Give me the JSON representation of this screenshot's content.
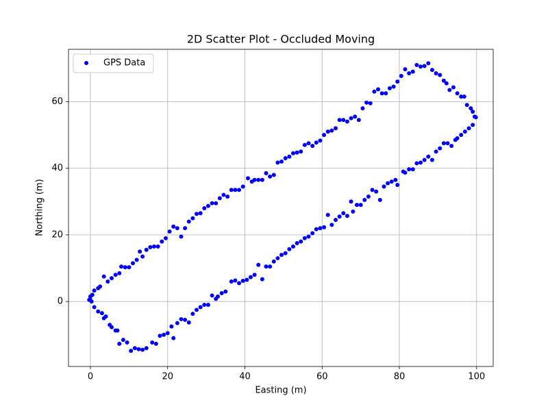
{
  "chart_data": {
    "type": "scatter",
    "title": "2D Scatter Plot - Occluded Moving",
    "x_label": "Easting (m)",
    "y_label": "Northing (m)",
    "xlim": [
      -5.67,
      104.3
    ],
    "ylim": [
      -19.5,
      75.7
    ],
    "xticks": [
      0,
      20,
      40,
      60,
      80,
      100
    ],
    "yticks": [
      0,
      20,
      40,
      60
    ],
    "grid": true,
    "legend": "upper left",
    "series": [
      {
        "name": "GPS Data",
        "color": "blue",
        "x": [
          -0.3,
          0,
          0.5,
          1,
          2,
          2.5,
          3.5,
          4.5,
          5.5,
          6.5,
          7.5,
          8,
          9,
          10,
          11,
          12,
          12.8,
          13.5,
          14.5,
          15.5,
          16.5,
          17.5,
          18.5,
          19.5,
          20.5,
          21.5,
          22.5,
          23.5,
          24.5,
          25.5,
          26.5,
          27.5,
          28.5,
          29.5,
          30.5,
          31.5,
          32.5,
          33.5,
          34.5,
          35.5,
          36.5,
          37.5,
          38.5,
          39.5,
          40.8,
          41.8,
          42.5,
          43.5,
          44.5,
          45.5,
          46.5,
          47.5,
          48.5,
          49.5,
          50.5,
          51.5,
          52.5,
          53.5,
          54.5,
          55.5,
          56.5,
          57.5,
          58.5,
          59.5,
          60.5,
          61.5,
          62.5,
          63.5,
          64.5,
          65.5,
          66.5,
          67.5,
          68.5,
          69.5,
          70.5,
          71.5,
          72.5,
          73.5,
          74.5,
          75.5,
          76.5,
          77.5,
          78.5,
          79.5,
          80.5,
          81.5,
          82.5,
          83.5,
          84.5,
          85.5,
          86.5,
          87.5,
          88.5,
          89.5,
          90.5,
          91.5,
          92.2,
          93,
          94,
          95,
          96,
          96.8,
          97.5,
          98.5,
          99,
          99.5,
          99.8,
          99,
          98,
          97,
          96,
          95,
          94.5,
          93.5,
          92.5,
          91.5,
          90.5,
          89.5,
          88.5,
          87.5,
          86.5,
          85.5,
          84.5,
          83.5,
          82.5,
          81.5,
          81,
          79.5,
          79,
          78,
          77,
          76,
          75,
          74,
          73,
          72,
          71,
          70,
          69,
          68,
          67.5,
          66.5,
          65.5,
          64.5,
          63.5,
          62.5,
          61.5,
          60.5,
          59.5,
          58.5,
          57.5,
          56.5,
          55.5,
          54.5,
          53.5,
          52.5,
          51.5,
          50.5,
          49.5,
          48.5,
          47.5,
          46.5,
          45.5,
          44.5,
          43.5,
          42.5,
          41.5,
          40.5,
          39.5,
          38.5,
          37.5,
          36.5,
          35,
          34,
          33,
          32.5,
          31.5,
          30.5,
          29.5,
          28.5,
          27.5,
          26.5,
          25.5,
          24.5,
          23.5,
          22.5,
          21.5,
          21,
          20,
          19,
          18,
          17,
          16,
          14.5,
          13.5,
          12.5,
          11.5,
          10.5,
          9.5,
          8.5,
          7.5,
          7,
          6.5,
          5.5,
          5,
          4,
          3.5,
          3,
          2,
          1,
          0.3,
          0
        ],
        "values": [
          0.5,
          1.5,
          2,
          3.3,
          4,
          4.5,
          7.5,
          6,
          7,
          8,
          8.5,
          10.5,
          10.3,
          10.3,
          11.5,
          12.5,
          15,
          13.5,
          15.5,
          16.3,
          16.5,
          16.5,
          18,
          19,
          21,
          22.5,
          22,
          19.5,
          22,
          24,
          25,
          26.3,
          26.5,
          28,
          28.7,
          29.5,
          29.5,
          31,
          32,
          31.5,
          33.5,
          33.5,
          33.5,
          34.5,
          37,
          36,
          36.5,
          36.5,
          36.5,
          38.5,
          37.5,
          38,
          41.7,
          42,
          43,
          43.5,
          44.5,
          44.7,
          45,
          47,
          47.5,
          46.7,
          47.7,
          48.3,
          50,
          51,
          51.3,
          52,
          54.5,
          54.5,
          54,
          55,
          55.5,
          54.5,
          58,
          59.7,
          59.5,
          63,
          63.7,
          62.5,
          62.5,
          64,
          64.5,
          66,
          67.7,
          69.7,
          68.5,
          69,
          71,
          70.5,
          70.7,
          71.5,
          69.5,
          68.5,
          68,
          66.3,
          65.5,
          63.5,
          64.3,
          62.5,
          61.5,
          61.5,
          59,
          58,
          57,
          55.5,
          55.3,
          53,
          52,
          51,
          50,
          49,
          48.5,
          46.7,
          47.5,
          47.5,
          46,
          45,
          42.5,
          43.5,
          42.5,
          41.7,
          41.5,
          39.7,
          39.7,
          38.7,
          39,
          35,
          36.5,
          36,
          35.5,
          34.5,
          30.5,
          33,
          33.5,
          31.5,
          30.5,
          29,
          29,
          27,
          30,
          25.7,
          26.5,
          25.5,
          24.5,
          23,
          26,
          22.3,
          22,
          21.7,
          20.5,
          19.5,
          19,
          18,
          17.5,
          16.5,
          15.7,
          14.5,
          14,
          13,
          12,
          10.5,
          10.5,
          6.7,
          11,
          8,
          7.3,
          6.5,
          6.2,
          5.5,
          6.3,
          6,
          3,
          2.5,
          1.5,
          0.8,
          1.8,
          -1,
          -1,
          -1.7,
          -2.5,
          -3.7,
          -6.3,
          -5.5,
          -5.3,
          -6.5,
          -11,
          -7.5,
          -9.5,
          -10,
          -10.3,
          -12.7,
          -12.3,
          -14,
          -14.5,
          -14.3,
          -14,
          -14.8,
          -12.3,
          -11.5,
          -12.7,
          -8.7,
          -8.7,
          -7.7,
          -7,
          -4.5,
          -5,
          -3.5,
          -3,
          -1.7,
          0,
          0.5
        ]
      }
    ]
  }
}
